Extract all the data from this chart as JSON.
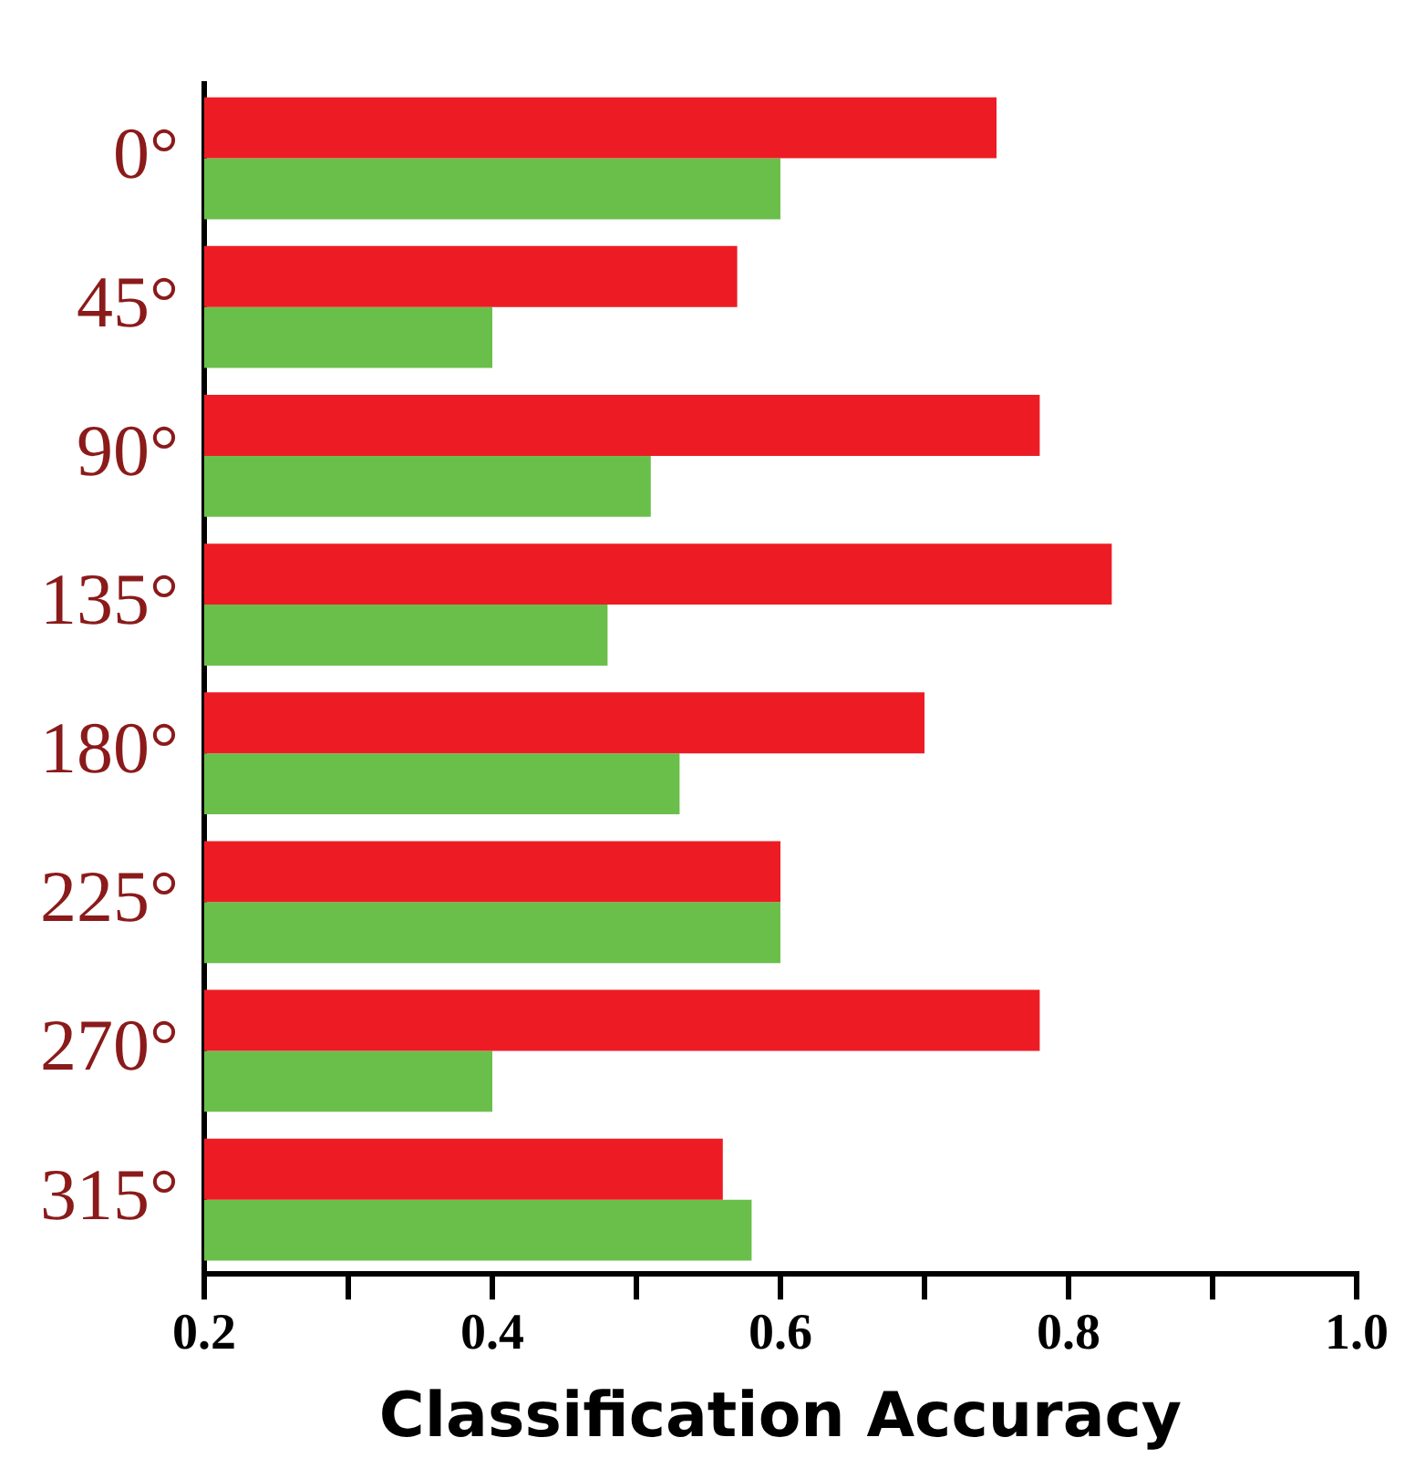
{
  "chart_data": {
    "type": "bar",
    "orientation": "horizontal",
    "xlabel": "Classification Accuracy",
    "categories": [
      "0°",
      "45°",
      "90°",
      "135°",
      "180°",
      "225°",
      "270°",
      "315°"
    ],
    "series": [
      {
        "color": "#ed1c24",
        "values": [
          0.75,
          0.57,
          0.78,
          0.83,
          0.7,
          0.6,
          0.78,
          0.56
        ]
      },
      {
        "color": "#6abf4b",
        "values": [
          0.6,
          0.4,
          0.51,
          0.48,
          0.53,
          0.6,
          0.4,
          0.58
        ]
      }
    ],
    "xlim": [
      0.2,
      1.0
    ],
    "xticks": [
      0.2,
      {
        "value": 0.3,
        "label": null
      },
      0.4,
      {
        "value": 0.5,
        "label": null
      },
      0.6,
      {
        "value": 0.7,
        "label": null
      },
      0.8,
      {
        "value": 0.9,
        "label": null
      },
      {
        "value": 1.0,
        "label": "1.0"
      }
    ],
    "grid": false,
    "legend": false
  }
}
